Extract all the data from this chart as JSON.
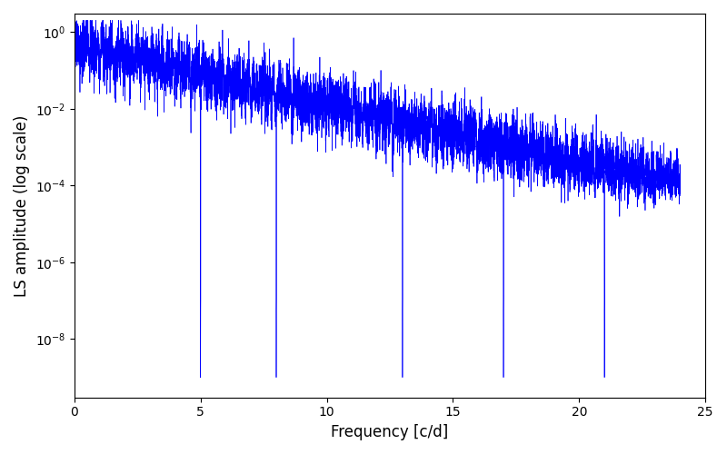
{
  "title": "",
  "xlabel": "Frequency [c/d]",
  "ylabel": "LS amplitude (log scale)",
  "line_color": "#0000ff",
  "xlim": [
    0,
    25
  ],
  "ylim_low": 3e-10,
  "ylim_high": 3.0,
  "background_color": "#ffffff",
  "figsize": [
    8.0,
    5.0
  ],
  "dpi": 100,
  "seed": 42,
  "n_points": 8000,
  "freq_max": 24.0,
  "peak_amplitude": 0.8,
  "decay_rate": 0.35,
  "noise_floor": 3e-05,
  "noise_floor_low": 2e-05,
  "noise_floor_high": 0.0002,
  "deep_dip_value": 1e-09,
  "n_deep_dips": 5
}
